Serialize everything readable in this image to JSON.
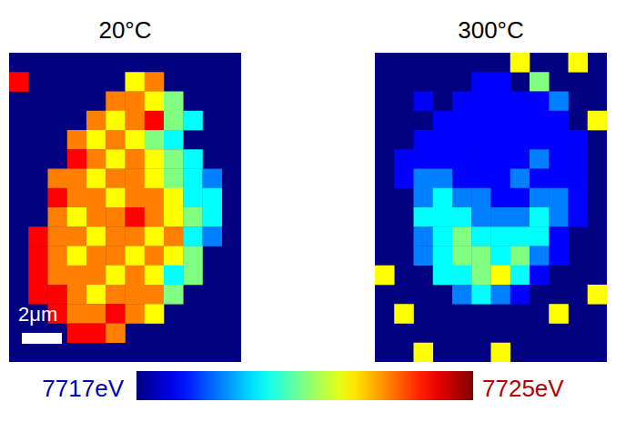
{
  "chart_data": [
    {
      "type": "heatmap",
      "title": "20°C",
      "cells": [
        [
          null,
          null,
          null,
          null,
          null,
          null,
          null,
          null,
          null,
          null,
          null,
          null
        ],
        [
          7724,
          null,
          null,
          null,
          null,
          null,
          7722,
          7723,
          null,
          null,
          null,
          null
        ],
        [
          null,
          null,
          null,
          null,
          null,
          7723,
          7723,
          7722,
          7721,
          null,
          null,
          null
        ],
        [
          null,
          null,
          null,
          null,
          7723,
          7722,
          7723,
          7724,
          7721,
          7720,
          null,
          null
        ],
        [
          null,
          null,
          null,
          7723,
          7722,
          7723,
          7722,
          7721,
          7720,
          null,
          null,
          null
        ],
        [
          null,
          null,
          null,
          7724,
          7723,
          7722,
          7723,
          7722,
          7721,
          7720,
          null,
          null
        ],
        [
          null,
          null,
          7723,
          7723,
          7722,
          7723,
          7723,
          7722,
          7721,
          7720,
          7719,
          null
        ],
        [
          null,
          null,
          7724,
          7723,
          7723,
          7722,
          7723,
          7723,
          7722,
          7720,
          7720,
          null
        ],
        [
          null,
          null,
          7723,
          7722,
          7723,
          7723,
          7724,
          7723,
          7722,
          7721,
          7720,
          null
        ],
        [
          null,
          7724,
          7723,
          7723,
          7722,
          7723,
          7723,
          7722,
          7723,
          7720,
          7719,
          null
        ],
        [
          null,
          7724,
          7723,
          7722,
          7723,
          7723,
          7722,
          7723,
          7722,
          7721,
          null,
          null
        ],
        [
          null,
          7724,
          7723,
          7723,
          7723,
          7722,
          7723,
          7722,
          7720,
          7721,
          null,
          null
        ],
        [
          null,
          7724,
          7724,
          7723,
          7722,
          7723,
          7723,
          7723,
          7721,
          null,
          null,
          null
        ],
        [
          null,
          null,
          7724,
          7723,
          7723,
          7724,
          7723,
          7722,
          null,
          null,
          null,
          null
        ],
        [
          null,
          null,
          null,
          7724,
          7724,
          7723,
          null,
          null,
          null,
          null,
          null,
          null
        ],
        [
          null,
          null,
          null,
          null,
          null,
          null,
          null,
          null,
          null,
          null,
          null,
          null
        ]
      ]
    },
    {
      "type": "heatmap",
      "title": "300°C",
      "cells": [
        [
          null,
          null,
          null,
          null,
          null,
          null,
          null,
          7722,
          null,
          null,
          7722,
          null
        ],
        [
          null,
          null,
          null,
          null,
          null,
          7718,
          7718,
          null,
          7721,
          null,
          null,
          null
        ],
        [
          null,
          null,
          7718,
          null,
          7718,
          7718,
          7718,
          7718,
          7718,
          7719,
          null,
          null
        ],
        [
          null,
          null,
          null,
          7718,
          7718,
          7718,
          7718,
          7718,
          7718,
          7718,
          null,
          7722
        ],
        [
          null,
          null,
          7718,
          7718,
          7718,
          7718,
          7718,
          7718,
          7718,
          7718,
          7718,
          null
        ],
        [
          null,
          7718,
          7718,
          7718,
          7718,
          7718,
          7718,
          7718,
          7719,
          7718,
          7718,
          null
        ],
        [
          null,
          7718,
          7719,
          7719,
          7718,
          7718,
          7718,
          7719,
          7718,
          7718,
          7718,
          null
        ],
        [
          null,
          null,
          7719,
          7720,
          7719,
          7719,
          7718,
          7718,
          7719,
          7719,
          7718,
          null
        ],
        [
          null,
          null,
          7720,
          7720,
          7720,
          7719,
          7719,
          7719,
          7720,
          7719,
          7718,
          null
        ],
        [
          null,
          null,
          7719,
          7720,
          7721,
          7720,
          7720,
          7720,
          7720,
          7718,
          null,
          null
        ],
        [
          null,
          null,
          7719,
          7720,
          7721,
          7721,
          7720,
          7721,
          7719,
          7718,
          null,
          null
        ],
        [
          7722,
          null,
          null,
          7720,
          7720,
          7721,
          7722,
          7720,
          7718,
          null,
          null,
          null
        ],
        [
          null,
          null,
          null,
          null,
          7719,
          7720,
          7719,
          7718,
          null,
          null,
          null,
          7722
        ],
        [
          null,
          7722,
          null,
          null,
          null,
          null,
          null,
          null,
          null,
          7722,
          null,
          null
        ],
        [
          null,
          null,
          null,
          null,
          null,
          null,
          null,
          null,
          null,
          null,
          null,
          null
        ],
        [
          null,
          null,
          7722,
          null,
          null,
          null,
          7722,
          null,
          null,
          null,
          null,
          null
        ]
      ]
    }
  ],
  "colorbar": {
    "range": [
      7717,
      7725
    ],
    "ticks": [
      {
        "value": 7717,
        "label": "7717eV"
      },
      {
        "value": 7725,
        "label": "7725eV"
      }
    ]
  },
  "scale_bar": {
    "label": "2μm"
  }
}
